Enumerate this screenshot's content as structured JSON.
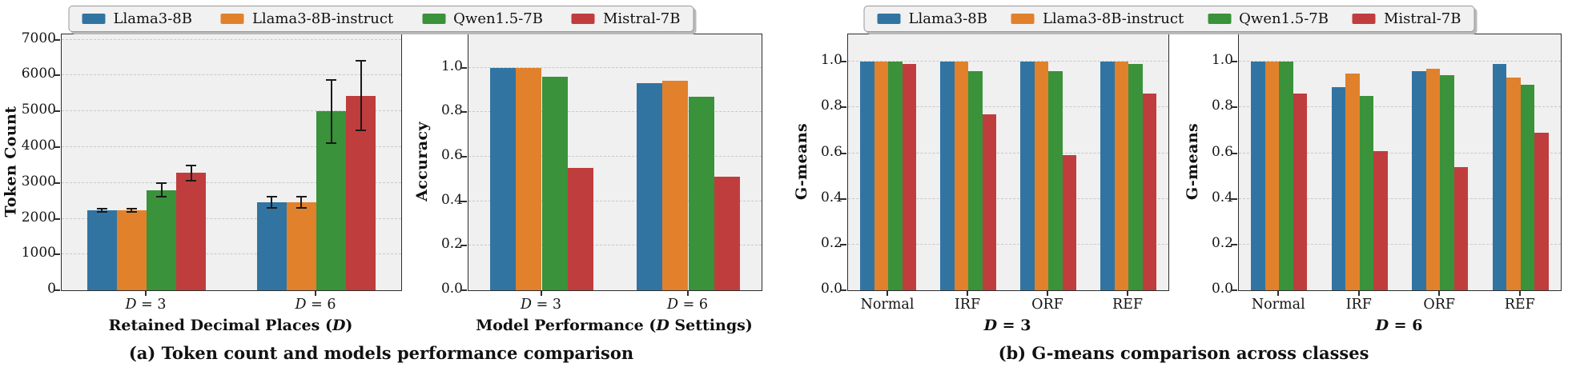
{
  "figure": {
    "panel_a_caption": "(a) Token count and models performance comparison",
    "panel_b_caption": "(b) G-means comparison across classes"
  },
  "legend": {
    "items": [
      {
        "label": "Llama3-8B",
        "color": "#3274a1"
      },
      {
        "label": "Llama3-8B-instruct",
        "color": "#e1812c"
      },
      {
        "label": "Qwen1.5-7B",
        "color": "#3a923a"
      },
      {
        "label": "Mistral-7B",
        "color": "#c03d3e"
      }
    ],
    "position": "top center, one shared legend per panel"
  },
  "chart_data": [
    {
      "id": "token-count",
      "type": "bar",
      "panel": "a",
      "ylabel": "Token Count",
      "xlabel": "Retained Decimal Places (D)",
      "categories": [
        "D = 3",
        "D = 6"
      ],
      "series": [
        {
          "name": "Llama3-8B",
          "values": [
            2230,
            2460
          ],
          "errors": [
            70,
            170
          ]
        },
        {
          "name": "Llama3-8B-instruct",
          "values": [
            2230,
            2460
          ],
          "errors": [
            70,
            170
          ]
        },
        {
          "name": "Qwen1.5-7B",
          "values": [
            2800,
            5000
          ],
          "errors": [
            210,
            900
          ]
        },
        {
          "name": "Mistral-7B",
          "values": [
            3280,
            5440
          ],
          "errors": [
            230,
            1000
          ]
        }
      ],
      "ylim": [
        0,
        7150
      ],
      "yticks": [
        0,
        1000,
        2000,
        3000,
        4000,
        5000,
        6000,
        7000
      ],
      "ytick_labels": [
        "0",
        "1000",
        "2000",
        "3000",
        "4000",
        "5000",
        "6000",
        "7000"
      ],
      "grid": "horizontal dashed"
    },
    {
      "id": "accuracy",
      "type": "bar",
      "panel": "a",
      "ylabel": "Accuracy",
      "xlabel": "Model Performance (D Settings)",
      "categories": [
        "D = 3",
        "D = 6"
      ],
      "series": [
        {
          "name": "Llama3-8B",
          "values": [
            1.0,
            0.93
          ]
        },
        {
          "name": "Llama3-8B-instruct",
          "values": [
            1.0,
            0.94
          ]
        },
        {
          "name": "Qwen1.5-7B",
          "values": [
            0.96,
            0.87
          ]
        },
        {
          "name": "Mistral-7B",
          "values": [
            0.55,
            0.51
          ]
        }
      ],
      "ylim": [
        0,
        1.15
      ],
      "yticks": [
        0,
        0.2,
        0.4,
        0.6,
        0.8,
        1.0
      ],
      "ytick_labels": [
        "0.0",
        "0.2",
        "0.4",
        "0.6",
        "0.8",
        "1.0"
      ],
      "grid": "horizontal dashed"
    },
    {
      "id": "gmeans-d3",
      "type": "bar",
      "panel": "b",
      "ylabel": "G-means",
      "xlabel": "D = 3",
      "categories": [
        "Normal",
        "IRF",
        "ORF",
        "REF"
      ],
      "series": [
        {
          "name": "Llama3-8B",
          "values": [
            1.0,
            1.0,
            1.0,
            1.0
          ]
        },
        {
          "name": "Llama3-8B-instruct",
          "values": [
            1.0,
            1.0,
            1.0,
            1.0
          ]
        },
        {
          "name": "Qwen1.5-7B",
          "values": [
            1.0,
            0.96,
            0.96,
            0.99
          ]
        },
        {
          "name": "Mistral-7B",
          "values": [
            0.99,
            0.77,
            0.59,
            0.86
          ]
        }
      ],
      "ylim": [
        0,
        1.12
      ],
      "yticks": [
        0,
        0.2,
        0.4,
        0.6,
        0.8,
        1.0
      ],
      "ytick_labels": [
        "0.0",
        "0.2",
        "0.4",
        "0.6",
        "0.8",
        "1.0"
      ],
      "grid": "horizontal dashed"
    },
    {
      "id": "gmeans-d6",
      "type": "bar",
      "panel": "b",
      "ylabel": "G-means",
      "xlabel": "D = 6",
      "categories": [
        "Normal",
        "IRF",
        "ORF",
        "REF"
      ],
      "series": [
        {
          "name": "Llama3-8B",
          "values": [
            1.0,
            0.89,
            0.96,
            0.99
          ]
        },
        {
          "name": "Llama3-8B-instruct",
          "values": [
            1.0,
            0.95,
            0.97,
            0.93
          ]
        },
        {
          "name": "Qwen1.5-7B",
          "values": [
            1.0,
            0.85,
            0.94,
            0.9
          ]
        },
        {
          "name": "Mistral-7B",
          "values": [
            0.86,
            0.61,
            0.54,
            0.69
          ]
        }
      ],
      "ylim": [
        0,
        1.12
      ],
      "yticks": [
        0,
        0.2,
        0.4,
        0.6,
        0.8,
        1.0
      ],
      "ytick_labels": [
        "0.0",
        "0.2",
        "0.4",
        "0.6",
        "0.8",
        "1.0"
      ],
      "grid": "horizontal dashed"
    }
  ]
}
